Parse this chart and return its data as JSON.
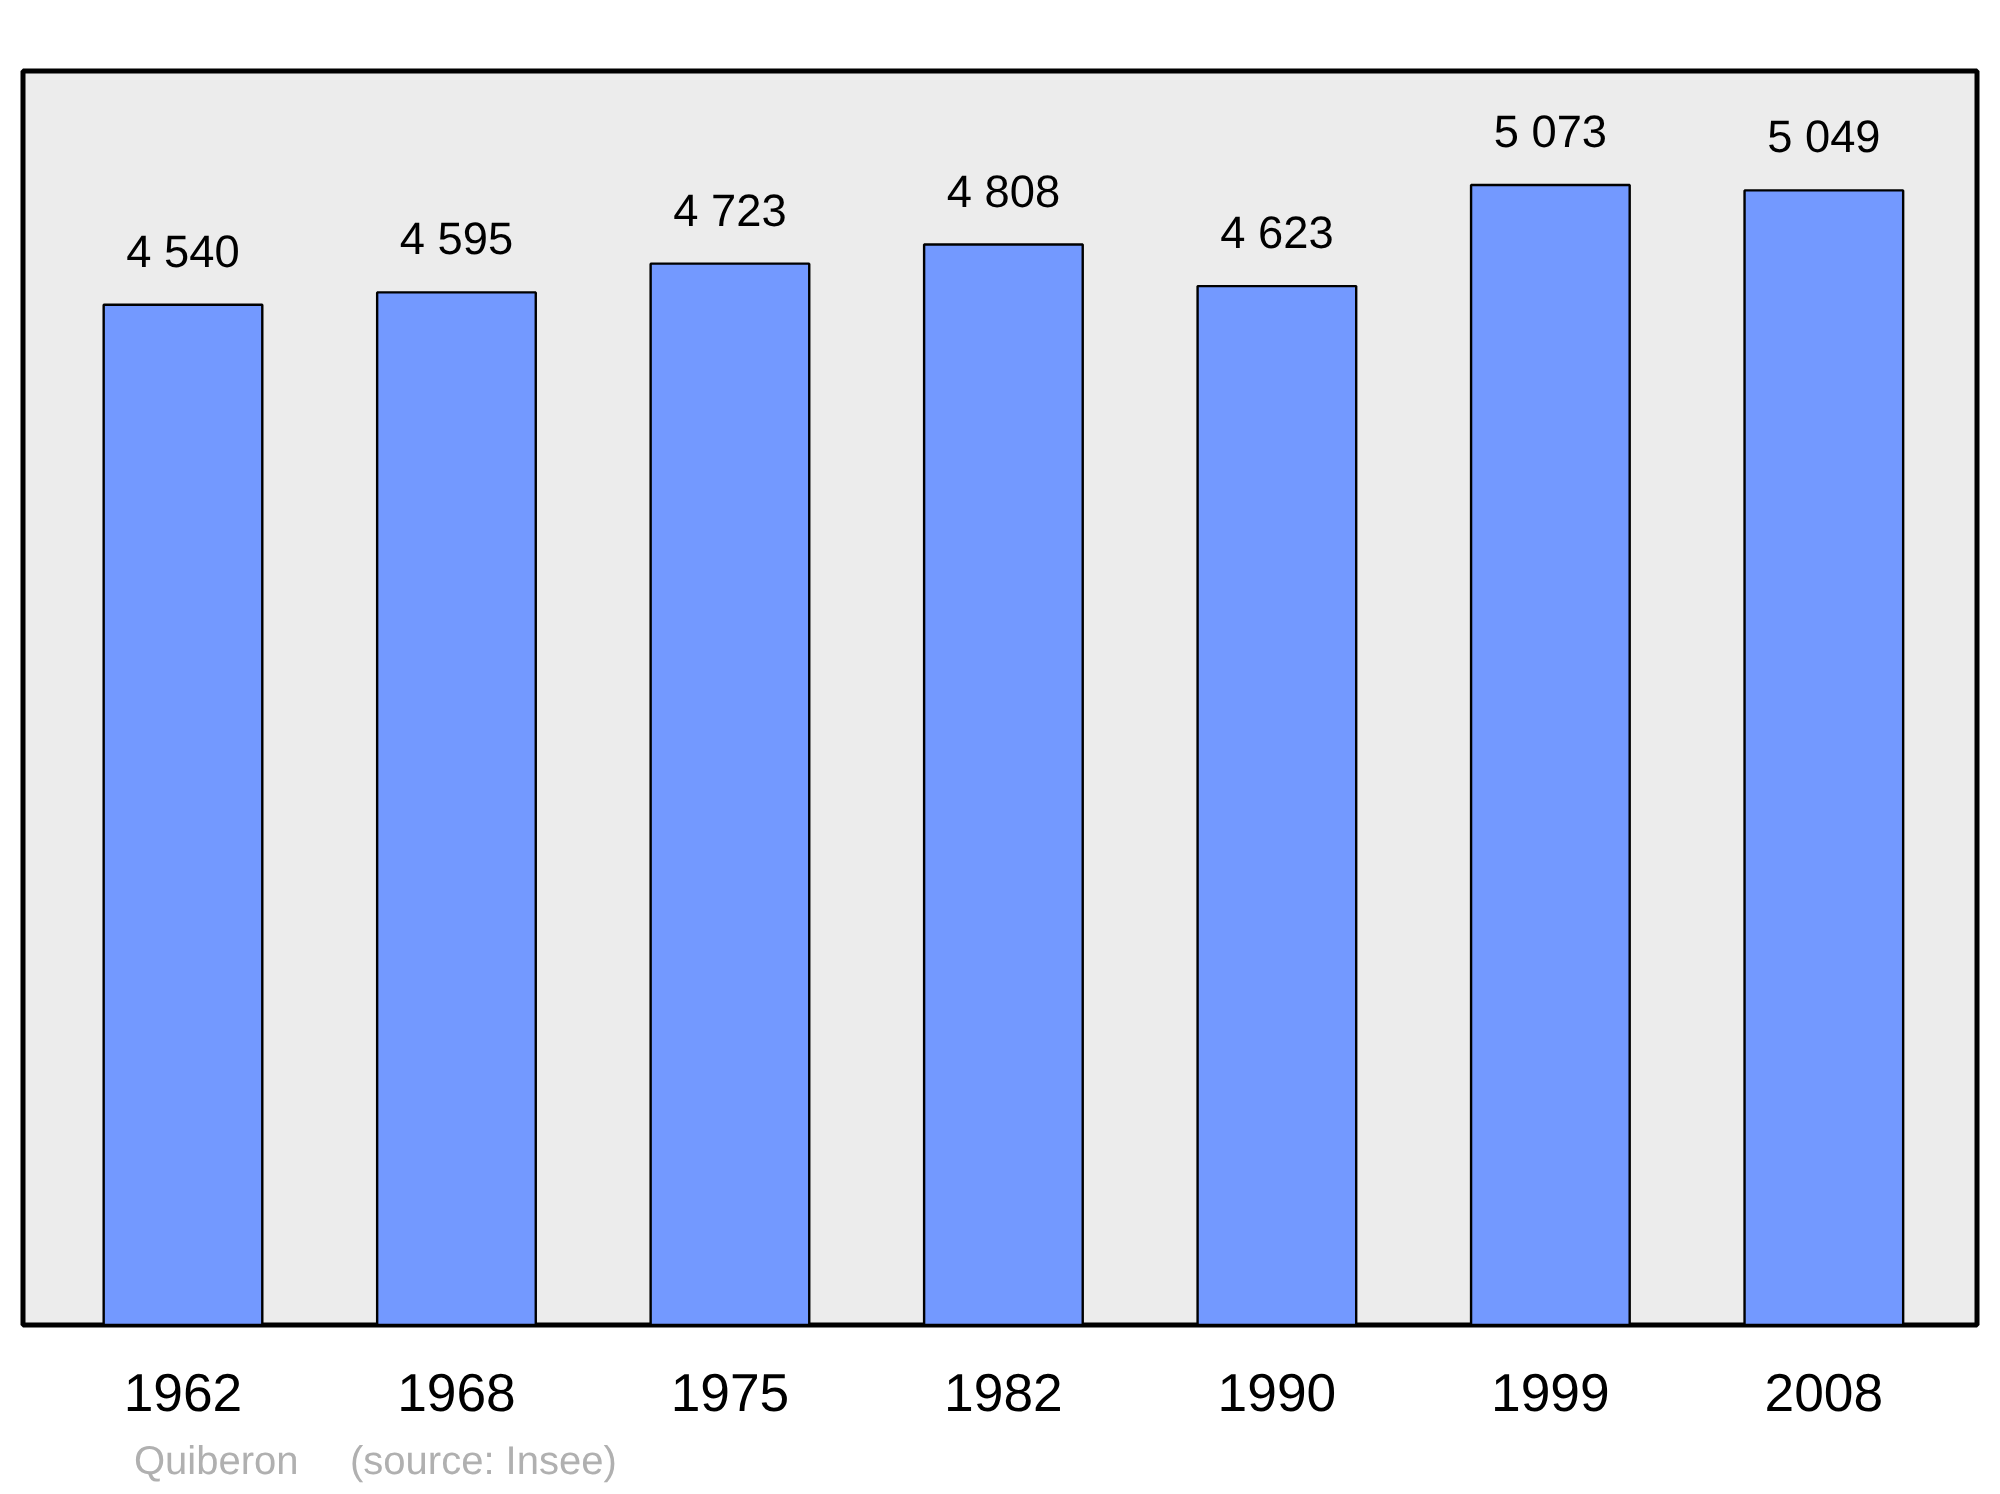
{
  "chart_data": {
    "type": "bar",
    "categories": [
      "1962",
      "1968",
      "1975",
      "1982",
      "1990",
      "1999",
      "2008"
    ],
    "values": [
      4540,
      4595,
      4723,
      4808,
      4623,
      5073,
      5049
    ],
    "value_labels": [
      "4 540",
      "4 595",
      "4 723",
      "4 808",
      "4 623",
      "5 073",
      "5 049"
    ],
    "color": "#7399ff",
    "grid": false,
    "annotations": [
      "Quiberon",
      "(source: Insee)"
    ]
  }
}
